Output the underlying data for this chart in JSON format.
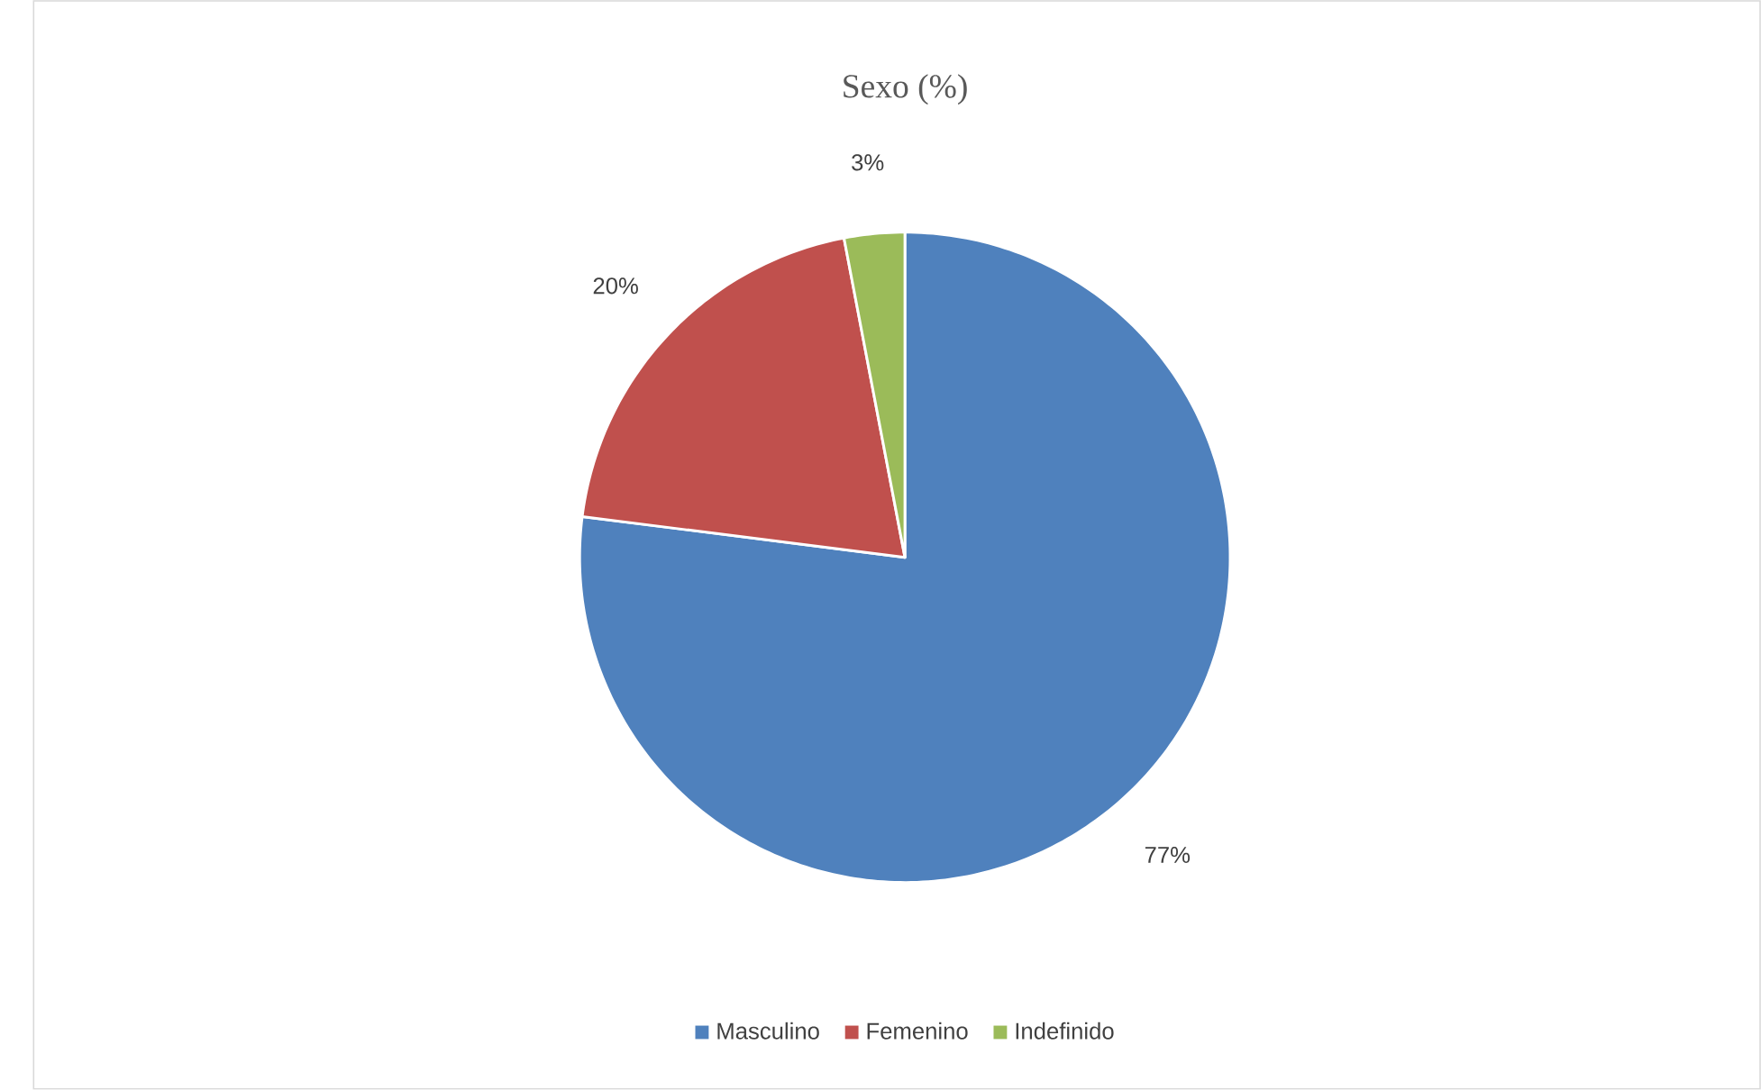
{
  "chart_data": {
    "type": "pie",
    "title": "Sexo (%)",
    "categories": [
      "Masculino",
      "Femenino",
      "Indefinido"
    ],
    "values": [
      77,
      20,
      3
    ],
    "colors": [
      "#4f81bd",
      "#c0504d",
      "#9bbb59"
    ],
    "value_labels": [
      "77%",
      "20%",
      "3%"
    ],
    "legend": "bottom"
  }
}
